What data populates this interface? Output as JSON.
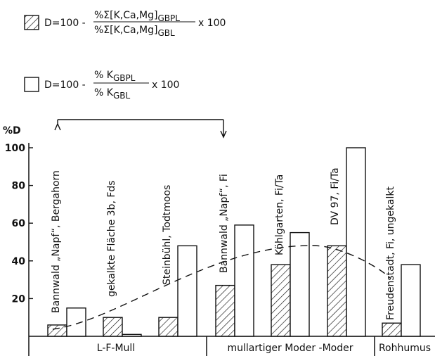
{
  "legend": {
    "hatched": {
      "lhs": "D=100 -",
      "numerator": "%Σ[K,Ca,Mg]",
      "numerator_sub": "GBPL",
      "denominator": "%Σ[K,Ca,Mg]",
      "denominator_sub": "GBL",
      "rhs": "x 100"
    },
    "open": {
      "lhs": "D=100 -",
      "numerator": "% K",
      "numerator_sub": "GBPL",
      "denominator": "% K",
      "denominator_sub": "GBL",
      "rhs": "x 100"
    }
  },
  "chart_data": {
    "type": "bar",
    "ylabel": "%D",
    "ylim": [
      0,
      100
    ],
    "yticks": [
      20,
      40,
      60,
      80,
      100
    ],
    "categories": [
      "Bannwald „Napf“, Bergahorn",
      "gekalkte Fläche 3b, Fds",
      "Steinbühl, Todtmoos",
      "Bannwald „Napf“, Fi",
      "Köhlgarten, Fi/Ta",
      "DV 97, Fi/Ta",
      "Freudenstadt, Fi, ungekalkt"
    ],
    "series": [
      {
        "pattern": "hatched",
        "values": [
          6,
          10,
          10,
          27,
          38,
          48,
          7
        ]
      },
      {
        "pattern": "open",
        "values": [
          15,
          1,
          48,
          59,
          55,
          100,
          38
        ]
      }
    ],
    "trend": "dashed curve",
    "groups": [
      {
        "label": "L-F-Mull",
        "categories": [
          0,
          1,
          2
        ]
      },
      {
        "label": "mullartiger Moder -Moder",
        "categories": [
          3,
          4,
          5
        ]
      },
      {
        "label": "Rohhumus",
        "categories": [
          6
        ]
      }
    ],
    "bracket": {
      "from": 0,
      "to": 3
    }
  }
}
